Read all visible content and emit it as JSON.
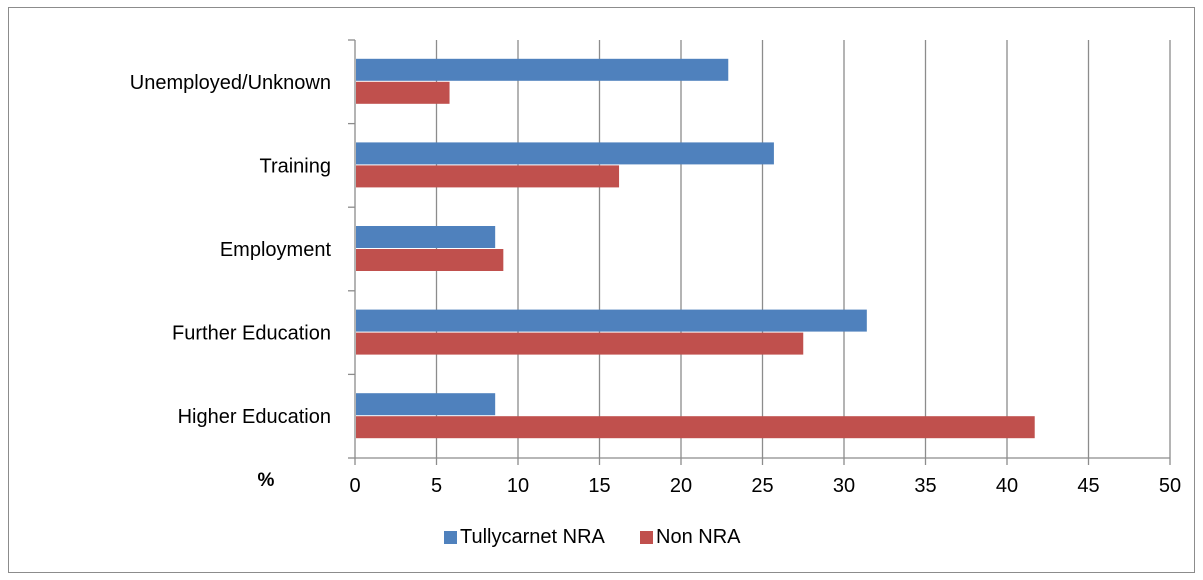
{
  "chart_data": {
    "type": "bar",
    "orientation": "horizontal",
    "categories": [
      "Higher Education",
      "Further Education",
      "Employment",
      "Training",
      "Unemployed/Unknown"
    ],
    "series": [
      {
        "name": "Tullycarnet NRA",
        "color": "#4f81bd",
        "values": [
          8.6,
          31.4,
          8.6,
          25.7,
          22.9
        ]
      },
      {
        "name": "Non NRA",
        "color": "#c0504d",
        "values": [
          41.7,
          27.5,
          9.1,
          16.2,
          5.8
        ]
      }
    ],
    "xlim": [
      0,
      50
    ],
    "xticks": [
      0,
      5,
      10,
      15,
      20,
      25,
      30,
      35,
      40,
      45,
      50
    ],
    "axis_unit_label": "%",
    "grid": "vertical",
    "legend": "bottom",
    "title": "",
    "xlabel": "",
    "ylabel": ""
  }
}
